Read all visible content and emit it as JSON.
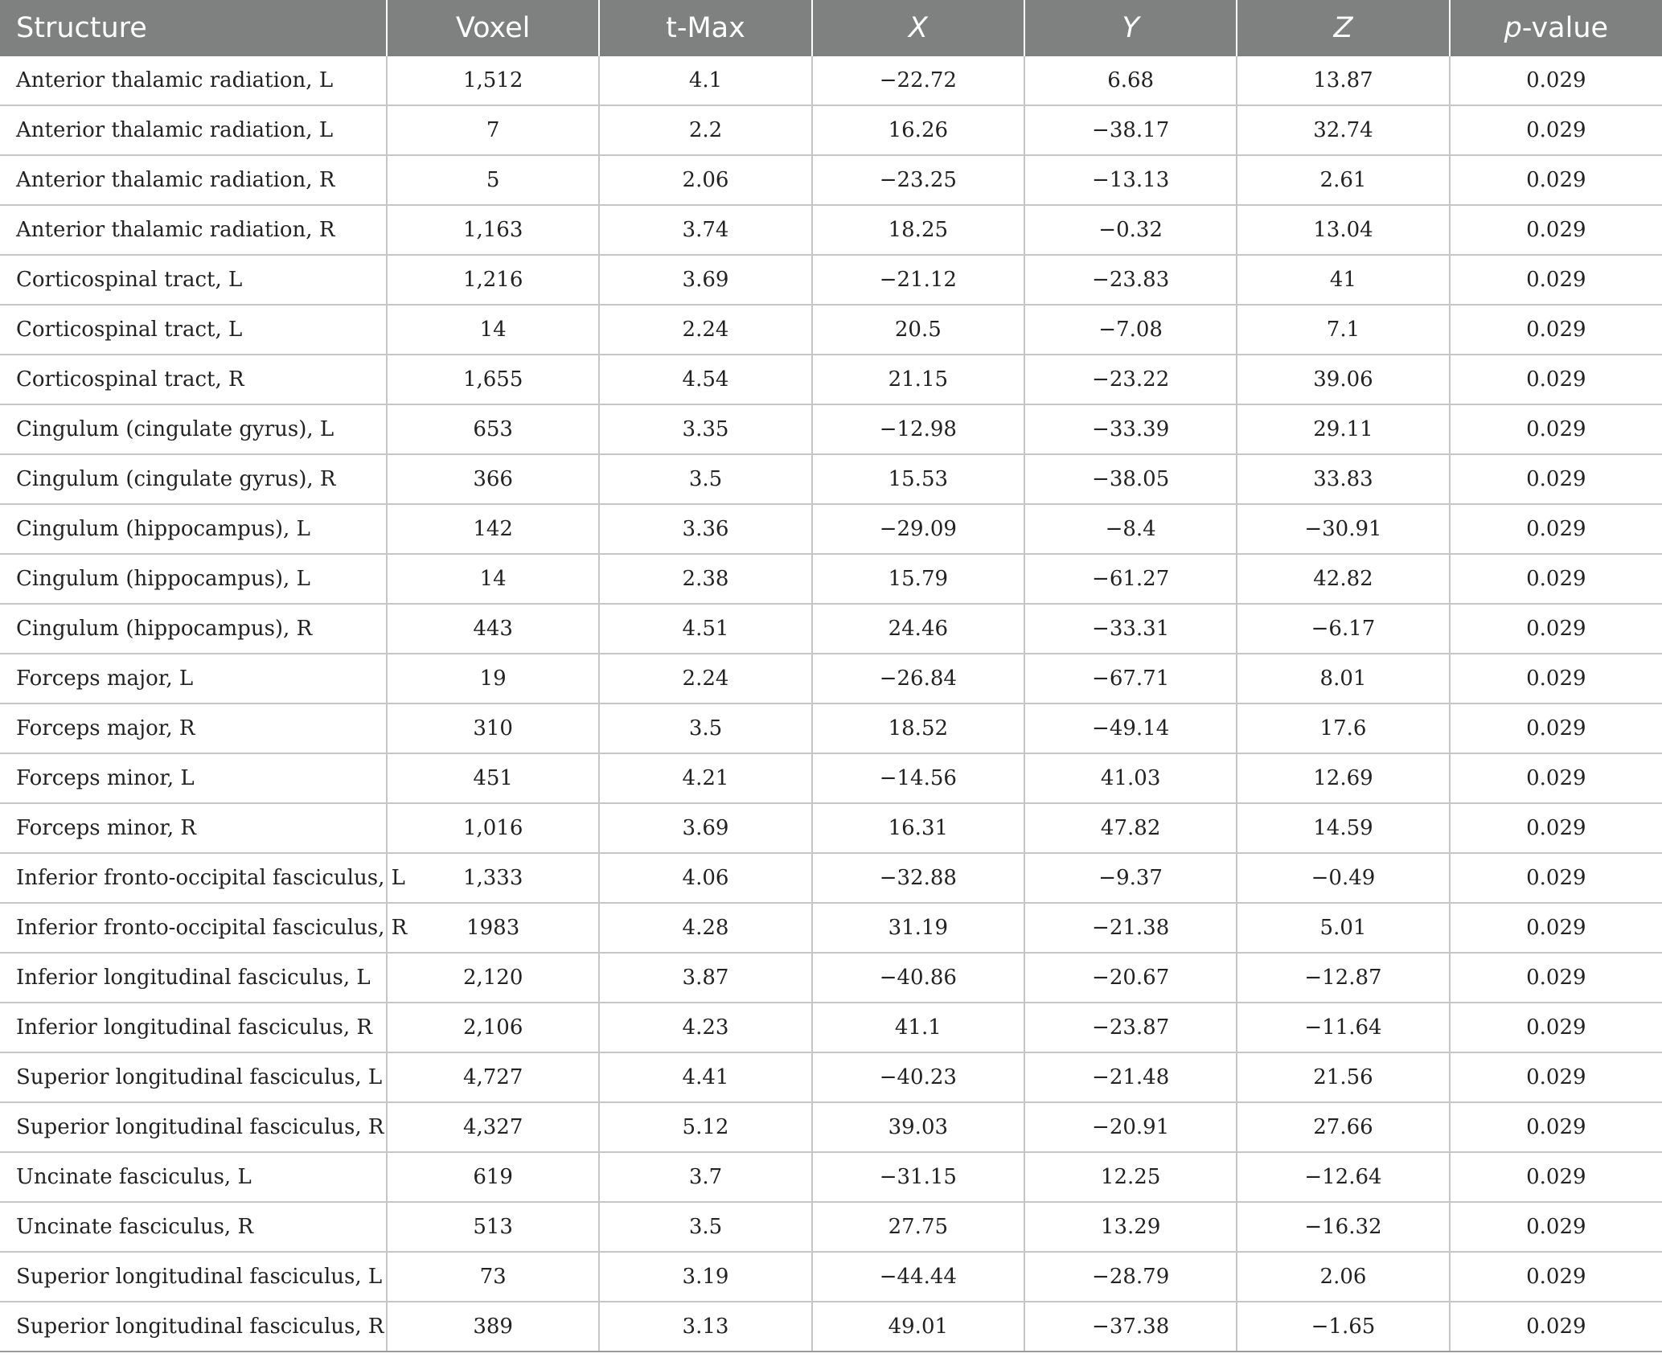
{
  "header": {
    "structure": "Structure",
    "voxel": "Voxel",
    "tmax": "t-Max",
    "x": "X",
    "y": "Y",
    "z": "Z",
    "p_italic": "p",
    "p_rest": "-value"
  },
  "rows": [
    {
      "structure": "Anterior thalamic radiation, L",
      "voxel": "1,512",
      "tmax": "4.1",
      "x": "−22.72",
      "y": "6.68",
      "z": "13.87",
      "p": "0.029"
    },
    {
      "structure": "Anterior thalamic radiation, L",
      "voxel": "7",
      "tmax": "2.2",
      "x": "16.26",
      "y": "−38.17",
      "z": "32.74",
      "p": "0.029"
    },
    {
      "structure": "Anterior thalamic radiation, R",
      "voxel": "5",
      "tmax": "2.06",
      "x": "−23.25",
      "y": "−13.13",
      "z": "2.61",
      "p": "0.029"
    },
    {
      "structure": "Anterior thalamic radiation, R",
      "voxel": "1,163",
      "tmax": "3.74",
      "x": "18.25",
      "y": "−0.32",
      "z": "13.04",
      "p": "0.029"
    },
    {
      "structure": "Corticospinal tract, L",
      "voxel": "1,216",
      "tmax": "3.69",
      "x": "−21.12",
      "y": "−23.83",
      "z": "41",
      "p": "0.029"
    },
    {
      "structure": "Corticospinal tract, L",
      "voxel": "14",
      "tmax": "2.24",
      "x": "20.5",
      "y": "−7.08",
      "z": "7.1",
      "p": "0.029"
    },
    {
      "structure": "Corticospinal tract, R",
      "voxel": "1,655",
      "tmax": "4.54",
      "x": "21.15",
      "y": "−23.22",
      "z": "39.06",
      "p": "0.029"
    },
    {
      "structure": "Cingulum (cingulate gyrus), L",
      "voxel": "653",
      "tmax": "3.35",
      "x": "−12.98",
      "y": "−33.39",
      "z": "29.11",
      "p": "0.029"
    },
    {
      "structure": "Cingulum (cingulate gyrus), R",
      "voxel": "366",
      "tmax": "3.5",
      "x": "15.53",
      "y": "−38.05",
      "z": "33.83",
      "p": "0.029"
    },
    {
      "structure": "Cingulum (hippocampus), L",
      "voxel": "142",
      "tmax": "3.36",
      "x": "−29.09",
      "y": "−8.4",
      "z": "−30.91",
      "p": "0.029"
    },
    {
      "structure": "Cingulum (hippocampus), L",
      "voxel": "14",
      "tmax": "2.38",
      "x": "15.79",
      "y": "−61.27",
      "z": "42.82",
      "p": "0.029"
    },
    {
      "structure": "Cingulum (hippocampus), R",
      "voxel": "443",
      "tmax": "4.51",
      "x": "24.46",
      "y": "−33.31",
      "z": "−6.17",
      "p": "0.029"
    },
    {
      "structure": "Forceps major, L",
      "voxel": "19",
      "tmax": "2.24",
      "x": "−26.84",
      "y": "−67.71",
      "z": "8.01",
      "p": "0.029"
    },
    {
      "structure": "Forceps major, R",
      "voxel": "310",
      "tmax": "3.5",
      "x": "18.52",
      "y": "−49.14",
      "z": "17.6",
      "p": "0.029"
    },
    {
      "structure": "Forceps minor, L",
      "voxel": "451",
      "tmax": "4.21",
      "x": "−14.56",
      "y": "41.03",
      "z": "12.69",
      "p": "0.029"
    },
    {
      "structure": "Forceps minor, R",
      "voxel": "1,016",
      "tmax": "3.69",
      "x": "16.31",
      "y": "47.82",
      "z": "14.59",
      "p": "0.029"
    },
    {
      "structure": "Inferior fronto-occipital fasciculus, L",
      "voxel": "1,333",
      "tmax": "4.06",
      "x": "−32.88",
      "y": "−9.37",
      "z": "−0.49",
      "p": "0.029"
    },
    {
      "structure": "Inferior fronto-occipital fasciculus, R",
      "voxel": "1983",
      "tmax": "4.28",
      "x": "31.19",
      "y": "−21.38",
      "z": "5.01",
      "p": "0.029"
    },
    {
      "structure": "Inferior longitudinal fasciculus, L",
      "voxel": "2,120",
      "tmax": "3.87",
      "x": "−40.86",
      "y": "−20.67",
      "z": "−12.87",
      "p": "0.029"
    },
    {
      "structure": "Inferior longitudinal fasciculus, R",
      "voxel": "2,106",
      "tmax": "4.23",
      "x": "41.1",
      "y": "−23.87",
      "z": "−11.64",
      "p": "0.029"
    },
    {
      "structure": "Superior longitudinal fasciculus, L",
      "voxel": "4,727",
      "tmax": "4.41",
      "x": "−40.23",
      "y": "−21.48",
      "z": "21.56",
      "p": "0.029"
    },
    {
      "structure": "Superior longitudinal fasciculus, R",
      "voxel": "4,327",
      "tmax": "5.12",
      "x": "39.03",
      "y": "−20.91",
      "z": "27.66",
      "p": "0.029"
    },
    {
      "structure": "Uncinate fasciculus, L",
      "voxel": "619",
      "tmax": "3.7",
      "x": "−31.15",
      "y": "12.25",
      "z": "−12.64",
      "p": "0.029"
    },
    {
      "structure": "Uncinate fasciculus, R",
      "voxel": "513",
      "tmax": "3.5",
      "x": "27.75",
      "y": "13.29",
      "z": "−16.32",
      "p": "0.029"
    },
    {
      "structure": "Superior longitudinal fasciculus, L",
      "voxel": "73",
      "tmax": "3.19",
      "x": "−44.44",
      "y": "−28.79",
      "z": "2.06",
      "p": "0.029"
    },
    {
      "structure": "Superior longitudinal fasciculus, R",
      "voxel": "389",
      "tmax": "3.13",
      "x": "49.01",
      "y": "−37.38",
      "z": "−1.65",
      "p": "0.029"
    }
  ]
}
